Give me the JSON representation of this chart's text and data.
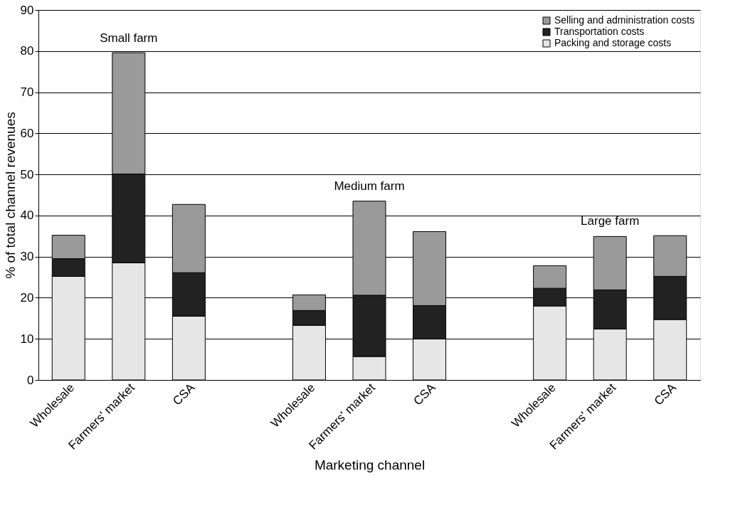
{
  "chart_data": {
    "type": "bar",
    "stacked": true,
    "xlabel": "Marketing channel",
    "ylabel": "% of total channel revenues",
    "categories": [
      "Wholesale",
      "Farmers' market",
      "CSA",
      "Wholesale",
      "Farmers' market",
      "CSA",
      "Wholesale",
      "Farmers' market",
      "CSA"
    ],
    "series": [
      {
        "name": "Packing and storage costs",
        "color": "#e6e6e6",
        "values": [
          25.2,
          28.5,
          15.5,
          13.3,
          5.7,
          10.0,
          18.0,
          12.4,
          14.7
        ]
      },
      {
        "name": "Transportation costs",
        "color": "#222222",
        "values": [
          4.3,
          21.6,
          10.6,
          3.6,
          14.9,
          8.1,
          4.3,
          9.5,
          10.5
        ]
      },
      {
        "name": "Selling and administration costs",
        "color": "#9a9a9a",
        "values": [
          5.7,
          29.5,
          16.6,
          3.8,
          22.9,
          18.0,
          5.5,
          13.0,
          9.9
        ]
      }
    ],
    "ylim": [
      0,
      90
    ],
    "yticks": [
      0,
      10,
      20,
      30,
      40,
      50,
      60,
      70,
      80,
      90
    ],
    "grid": "y",
    "legend": "top right",
    "annotations": [
      "Small farm",
      "Medium farm",
      "Large farm"
    ]
  }
}
